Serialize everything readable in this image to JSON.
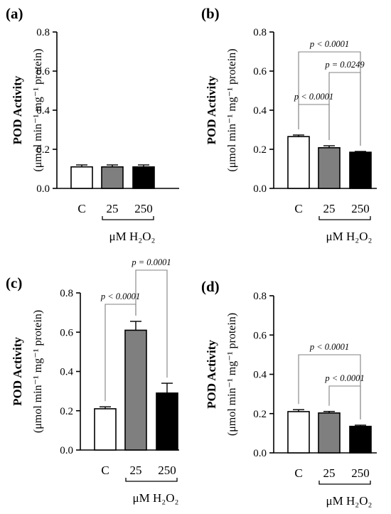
{
  "colors": {
    "control": "#ffffff",
    "h2o2_25": "#7f7f7f",
    "h2o2_250": "#000000",
    "axis": "#000000",
    "bracket": "#808080"
  },
  "chart_data": [
    {
      "panel": "(a)",
      "type": "bar",
      "ylabel_main": "POD Activity",
      "ylabel_unit": "(μmol min⁻¹ mg⁻¹ protein)",
      "ylim": [
        0,
        0.8
      ],
      "yticks": [
        "0.0",
        "0.2",
        "0.4",
        "0.6",
        "0.8"
      ],
      "categories": [
        "C",
        "25",
        "250"
      ],
      "group_label": "μM H₂O₂",
      "values": [
        0.11,
        0.11,
        0.11
      ],
      "errors": [
        0.01,
        0.01,
        0.01
      ],
      "comparisons": []
    },
    {
      "panel": "(b)",
      "type": "bar",
      "ylabel_main": "POD Activity",
      "ylabel_unit": "(μmol min⁻¹ mg⁻¹ protein)",
      "ylim": [
        0,
        0.8
      ],
      "yticks": [
        "0.0",
        "0.2",
        "0.4",
        "0.6",
        "0.8"
      ],
      "categories": [
        "C",
        "25",
        "250"
      ],
      "group_label": "μM H₂O₂",
      "values": [
        0.265,
        0.208,
        0.185
      ],
      "errors": [
        0.008,
        0.01,
        0.004
      ],
      "comparisons": [
        {
          "from": 0,
          "to": 2,
          "label": "p < 0.0001"
        },
        {
          "from": 1,
          "to": 2,
          "label": "p = 0.0249"
        },
        {
          "from": 0,
          "to": 1,
          "label": "p < 0.0001"
        }
      ]
    },
    {
      "panel": "(c)",
      "type": "bar",
      "ylabel_main": "POD Activity",
      "ylabel_unit": "(μmol min⁻¹ mg⁻¹ protein)",
      "ylim": [
        0,
        0.8
      ],
      "yticks": [
        "0.0",
        "0.2",
        "0.4",
        "0.6",
        "0.8"
      ],
      "categories": [
        "C",
        "25",
        "250"
      ],
      "group_label": "μM H₂O₂",
      "values": [
        0.21,
        0.61,
        0.29
      ],
      "errors": [
        0.01,
        0.045,
        0.05
      ],
      "comparisons": [
        {
          "from": 0,
          "to": 1,
          "label": "p < 0.0001"
        },
        {
          "from": 1,
          "to": 2,
          "label": "p = 0.0001"
        }
      ]
    },
    {
      "panel": "(d)",
      "type": "bar",
      "ylabel_main": "POD Activity",
      "ylabel_unit": "(μmol min⁻¹ mg⁻¹ protein)",
      "ylim": [
        0,
        0.8
      ],
      "yticks": [
        "0.0",
        "0.2",
        "0.4",
        "0.6",
        "0.8"
      ],
      "categories": [
        "C",
        "25",
        "250"
      ],
      "group_label": "μM H₂O₂",
      "values": [
        0.21,
        0.203,
        0.135
      ],
      "errors": [
        0.01,
        0.008,
        0.006
      ],
      "comparisons": [
        {
          "from": 0,
          "to": 2,
          "label": "p < 0.0001"
        },
        {
          "from": 1,
          "to": 2,
          "label": "p < 0.0001"
        }
      ]
    }
  ]
}
